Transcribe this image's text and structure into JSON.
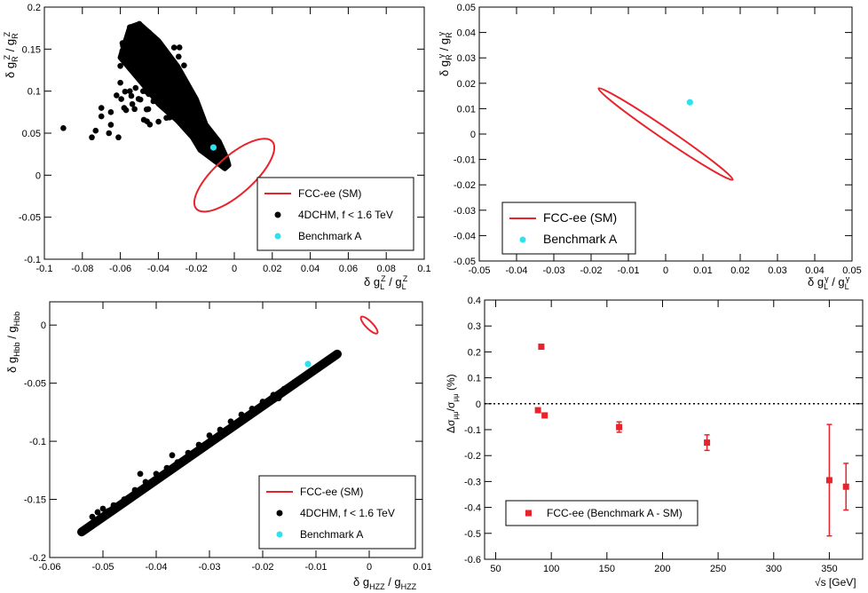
{
  "chart_data": [
    {
      "type": "scatter",
      "id": "p1",
      "xlim": [
        -0.1,
        0.1
      ],
      "ylim": [
        -0.1,
        0.2
      ],
      "x_ticks": [
        -0.1,
        -0.08,
        -0.06,
        -0.04,
        -0.02,
        0,
        0.02,
        0.04,
        0.06,
        0.08,
        0.1
      ],
      "x_tick_labels": [
        "-0.1",
        "-0.08",
        "-0.06",
        "-0.04",
        "-0.02",
        "0",
        "0.02",
        "0.04",
        "0.06",
        "0.08",
        "0.1"
      ],
      "y_ticks": [
        -0.1,
        -0.05,
        0,
        0.05,
        0.1,
        0.15,
        0.2
      ],
      "y_tick_labels": [
        "-0.1",
        "-0.05",
        "0",
        "0.05",
        "0.1",
        "0.15",
        "0.2"
      ],
      "xlabel": "δ g_L^Z / g_L^Z",
      "ylabel": "δ g_R^Z / g_R^Z",
      "ellipse": {
        "center": [
          0.003,
          0.0
        ],
        "points": [
          [
            0.02,
            0.04
          ],
          [
            -0.02,
            -0.04
          ],
          [
            -0.006,
            0.007
          ],
          [
            0.013,
            -0.007
          ]
        ]
      },
      "cloud": {
        "outline": [
          [
            -0.05,
            0.18
          ],
          [
            -0.055,
            0.176
          ],
          [
            -0.06,
            0.14
          ],
          [
            -0.045,
            0.1
          ],
          [
            -0.04,
            0.085
          ],
          [
            -0.03,
            0.065
          ],
          [
            -0.022,
            0.045
          ],
          [
            -0.018,
            0.03
          ],
          [
            -0.012,
            0.02
          ],
          [
            -0.005,
            0.008
          ],
          [
            -0.003,
            0.012
          ],
          [
            -0.004,
            0.02
          ],
          [
            -0.008,
            0.04
          ],
          [
            -0.015,
            0.06
          ],
          [
            -0.02,
            0.09
          ],
          [
            -0.03,
            0.13
          ],
          [
            -0.04,
            0.16
          ],
          [
            -0.045,
            0.17
          ]
        ],
        "points": [
          [
            -0.09,
            0.056
          ],
          [
            -0.073,
            0.053
          ],
          [
            -0.07,
            0.08
          ],
          [
            -0.07,
            0.07
          ],
          [
            -0.075,
            0.045
          ],
          [
            -0.065,
            0.06
          ],
          [
            -0.055,
            0.176
          ],
          [
            -0.05,
            0.18
          ],
          [
            -0.052,
            0.15
          ],
          [
            -0.06,
            0.13
          ],
          [
            -0.058,
            0.145
          ],
          [
            -0.045,
            0.17
          ],
          [
            -0.06,
            0.11
          ],
          [
            -0.062,
            0.095
          ],
          [
            -0.065,
            0.075
          ],
          [
            -0.058,
            0.08
          ],
          [
            -0.048,
            0.1
          ],
          [
            -0.046,
            0.14
          ],
          [
            -0.042,
            0.13
          ],
          [
            -0.04,
            0.155
          ],
          [
            -0.055,
            0.1
          ],
          [
            -0.05,
            0.12
          ],
          [
            -0.043,
            0.165
          ],
          [
            -0.052,
            0.165
          ],
          [
            -0.066,
            0.05
          ],
          [
            -0.061,
            0.045
          ]
        ]
      },
      "benchmark": [
        -0.011,
        0.033
      ],
      "legend": {
        "position": "bottom-right",
        "entries": [
          {
            "label": "FCC-ee (SM)",
            "kind": "line",
            "color": "#e8232b"
          },
          {
            "label": "4DCHM, f < 1.6 TeV",
            "kind": "marker",
            "color": "#000000"
          },
          {
            "label": "Benchmark A",
            "kind": "marker",
            "color": "#2fe0ef"
          }
        ]
      }
    },
    {
      "type": "scatter",
      "id": "p2",
      "xlim": [
        -0.05,
        0.05
      ],
      "ylim": [
        -0.05,
        0.05
      ],
      "x_ticks": [
        -0.05,
        -0.04,
        -0.03,
        -0.02,
        -0.01,
        0,
        0.01,
        0.02,
        0.03,
        0.04,
        0.05
      ],
      "x_tick_labels": [
        "-0.05",
        "-0.04",
        "-0.03",
        "-0.02",
        "-0.01",
        "0",
        "0.01",
        "0.02",
        "0.03",
        "0.04",
        "0.05"
      ],
      "y_ticks": [
        -0.05,
        -0.04,
        -0.03,
        -0.02,
        -0.01,
        0,
        0.01,
        0.02,
        0.03,
        0.04,
        0.05
      ],
      "y_tick_labels": [
        "-0.05",
        "-0.04",
        "-0.03",
        "-0.02",
        "-0.01",
        "0",
        "0.01",
        "0.02",
        "0.03",
        "0.04",
        "0.05"
      ],
      "xlabel": "δ g_L^γ / g_L^γ",
      "ylabel": "δ g_R^γ / g_R^γ",
      "ellipse": {
        "center": [
          0.0,
          0.0
        ],
        "points": [
          [
            -0.018,
            0.018
          ],
          [
            0.018,
            -0.018
          ],
          [
            -0.0012,
            -0.0012
          ],
          [
            0.0012,
            0.0012
          ]
        ]
      },
      "benchmark": [
        0.0065,
        0.0125
      ],
      "legend": {
        "position": "bottom-left",
        "entries": [
          {
            "label": "FCC-ee (SM)",
            "kind": "line",
            "color": "#e8232b"
          },
          {
            "label": "Benchmark A",
            "kind": "marker",
            "color": "#2fe0ef"
          }
        ]
      }
    },
    {
      "type": "scatter",
      "id": "p3",
      "xlim": [
        -0.06,
        0.01
      ],
      "ylim": [
        -0.2,
        0.02
      ],
      "x_ticks": [
        -0.06,
        -0.05,
        -0.04,
        -0.03,
        -0.02,
        -0.01,
        0,
        0.01
      ],
      "x_tick_labels": [
        "-0.06",
        "-0.05",
        "-0.04",
        "-0.03",
        "-0.02",
        "-0.01",
        "0",
        "0.01"
      ],
      "y_ticks": [
        -0.2,
        -0.15,
        -0.1,
        -0.05,
        0
      ],
      "y_tick_labels": [
        "-0.2",
        "-0.15",
        "-0.1",
        "-0.05",
        "0"
      ],
      "xlabel": "δ g_HZZ / g_HZZ",
      "ylabel": "δ g_Hbb / g_Hbb",
      "ellipse": {
        "center": [
          0.0,
          -0.0
        ],
        "points": [
          [
            -0.0015,
            0.007
          ],
          [
            0.0015,
            -0.007
          ],
          [
            -0.00045,
            -0.0022
          ],
          [
            0.00045,
            0.0022
          ]
        ]
      },
      "band": {
        "from": [
          -0.054,
          -0.178
        ],
        "to": [
          -0.006,
          -0.025
        ],
        "width": 0.0035
      },
      "band_points": [
        [
          -0.054,
          -0.178
        ],
        [
          -0.052,
          -0.165
        ],
        [
          -0.051,
          -0.161
        ],
        [
          -0.049,
          -0.16
        ],
        [
          -0.048,
          -0.155
        ],
        [
          -0.046,
          -0.15
        ],
        [
          -0.044,
          -0.142
        ],
        [
          -0.042,
          -0.135
        ],
        [
          -0.04,
          -0.128
        ],
        [
          -0.038,
          -0.123
        ],
        [
          -0.036,
          -0.118
        ],
        [
          -0.034,
          -0.11
        ],
        [
          -0.032,
          -0.103
        ],
        [
          -0.03,
          -0.095
        ],
        [
          -0.028,
          -0.09
        ],
        [
          -0.026,
          -0.083
        ],
        [
          -0.024,
          -0.077
        ],
        [
          -0.022,
          -0.072
        ],
        [
          -0.02,
          -0.066
        ],
        [
          -0.018,
          -0.06
        ],
        [
          -0.016,
          -0.055
        ],
        [
          -0.014,
          -0.049
        ],
        [
          -0.012,
          -0.043
        ],
        [
          -0.01,
          -0.037
        ],
        [
          -0.008,
          -0.031
        ],
        [
          -0.006,
          -0.025
        ],
        [
          -0.043,
          -0.128
        ],
        [
          -0.037,
          -0.112
        ],
        [
          -0.027,
          -0.093
        ],
        [
          -0.017,
          -0.063
        ],
        [
          -0.05,
          -0.158
        ]
      ],
      "benchmark": [
        -0.0115,
        -0.0335
      ],
      "legend": {
        "position": "bottom-right",
        "entries": [
          {
            "label": "FCC-ee (SM)",
            "kind": "line",
            "color": "#e8232b"
          },
          {
            "label": "4DCHM, f < 1.6 TeV",
            "kind": "marker",
            "color": "#000000"
          },
          {
            "label": "Benchmark A",
            "kind": "marker",
            "color": "#2fe0ef"
          }
        ]
      }
    },
    {
      "type": "scatter",
      "id": "p4",
      "xlim": [
        40,
        380
      ],
      "ylim": [
        -0.6,
        0.4
      ],
      "x_ticks": [
        50,
        100,
        150,
        200,
        250,
        300,
        350
      ],
      "x_tick_labels": [
        "50",
        "100",
        "150",
        "200",
        "250",
        "300",
        "350"
      ],
      "y_ticks": [
        -0.6,
        -0.5,
        -0.4,
        -0.3,
        -0.2,
        -0.1,
        0,
        0.1,
        0.2,
        0.3,
        0.4
      ],
      "y_tick_labels": [
        "-0.6",
        "-0.5",
        "-0.4",
        "-0.3",
        "-0.2",
        "-0.1",
        "0",
        "0.1",
        "0.2",
        "0.3",
        "0.4"
      ],
      "xlabel": "√s [GeV]",
      "ylabel": "Δσ_μμ/σ_μμ (%)",
      "reference_line": 0,
      "points": [
        {
          "x": 88,
          "y": -0.025,
          "err": 0.0
        },
        {
          "x": 91,
          "y": 0.22,
          "err": 0.0
        },
        {
          "x": 94,
          "y": -0.045,
          "err": 0.0
        },
        {
          "x": 161,
          "y": -0.09,
          "err": 0.02
        },
        {
          "x": 240,
          "y": -0.15,
          "err": 0.03
        },
        {
          "x": 350,
          "y": -0.295,
          "err": 0.215
        },
        {
          "x": 365,
          "y": -0.32,
          "err": 0.09
        }
      ],
      "legend": {
        "position": "bottom-left",
        "entries": [
          {
            "label": "FCC-ee (Benchmark A - SM)",
            "kind": "square",
            "color": "#e8232b"
          }
        ]
      }
    }
  ]
}
